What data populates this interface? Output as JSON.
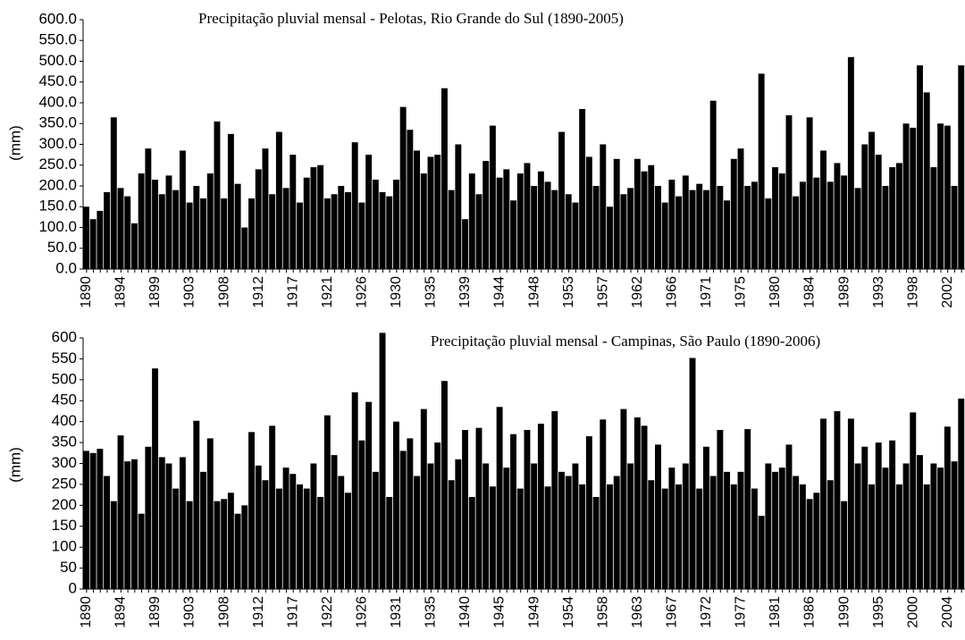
{
  "chart_data": [
    {
      "type": "bar",
      "title": "Precipitação pluvial mensal - Pelotas, Rio Grande do Sul (1890-2005)",
      "y_label": "(mm)",
      "color": "#000000",
      "categories": [
        "1890",
        null,
        null,
        null,
        null,
        "1894",
        null,
        null,
        null,
        null,
        "1899",
        null,
        null,
        null,
        null,
        "1903",
        null,
        null,
        null,
        null,
        "1908",
        null,
        null,
        null,
        null,
        "1912",
        null,
        null,
        null,
        null,
        "1917",
        null,
        null,
        null,
        null,
        "1921",
        null,
        null,
        null,
        null,
        "1926",
        null,
        null,
        null,
        null,
        "1930",
        null,
        null,
        null,
        null,
        "1935",
        null,
        null,
        null,
        null,
        "1939",
        null,
        null,
        null,
        null,
        "1944",
        null,
        null,
        null,
        null,
        "1948",
        null,
        null,
        null,
        null,
        "1953",
        null,
        null,
        null,
        null,
        "1957",
        null,
        null,
        null,
        null,
        "1962",
        null,
        null,
        null,
        null,
        "1966",
        null,
        null,
        null,
        null,
        "1971",
        null,
        null,
        null,
        null,
        "1975",
        null,
        null,
        null,
        null,
        "1980",
        null,
        null,
        null,
        null,
        "1984",
        null,
        null,
        null,
        null,
        "1989",
        null,
        null,
        null,
        null,
        "1993",
        null,
        null,
        null,
        null,
        "1998",
        null,
        null,
        null,
        null,
        "2002",
        null,
        null
      ],
      "values": [
        150,
        120,
        140,
        185,
        365,
        195,
        175,
        110,
        230,
        290,
        215,
        180,
        225,
        190,
        285,
        160,
        200,
        170,
        230,
        355,
        170,
        325,
        205,
        100,
        170,
        240,
        290,
        180,
        330,
        195,
        275,
        160,
        220,
        245,
        250,
        170,
        180,
        200,
        185,
        305,
        160,
        275,
        215,
        185,
        175,
        215,
        390,
        335,
        285,
        230,
        270,
        275,
        435,
        190,
        300,
        120,
        230,
        180,
        260,
        345,
        220,
        240,
        165,
        230,
        255,
        200,
        235,
        210,
        190,
        330,
        180,
        160,
        385,
        270,
        200,
        300,
        150,
        265,
        180,
        195,
        265,
        235,
        250,
        200,
        160,
        215,
        175,
        225,
        190,
        205,
        190,
        405,
        200,
        165,
        265,
        290,
        200,
        210,
        470,
        170,
        245,
        230,
        370,
        175,
        210,
        365,
        220,
        285,
        210,
        255,
        225,
        510,
        195,
        300,
        330,
        275,
        200,
        245,
        255,
        350,
        340,
        490,
        425,
        245,
        350,
        345,
        200,
        490
      ],
      "ylim": [
        0,
        600
      ],
      "yticks": [
        {
          "value": 0,
          "label": "0.0"
        },
        {
          "value": 50,
          "label": "50.0"
        },
        {
          "value": 100,
          "label": "100.0"
        },
        {
          "value": 150,
          "label": "150.0"
        },
        {
          "value": 200,
          "label": "200.0"
        },
        {
          "value": 250,
          "label": "250.0"
        },
        {
          "value": 300,
          "label": "300.0"
        },
        {
          "value": 350,
          "label": "350.0"
        },
        {
          "value": 400,
          "label": "400.0"
        },
        {
          "value": 450,
          "label": "450.0"
        },
        {
          "value": 500,
          "label": "500.0"
        },
        {
          "value": 550,
          "label": "550.0"
        },
        {
          "value": 600,
          "label": "600.0"
        }
      ]
    },
    {
      "type": "bar",
      "title": "Precipitação pluvial mensal - Campinas, São Paulo (1890-2006)",
      "y_label": "(mm)",
      "color": "#000000",
      "categories": [
        "1890",
        null,
        null,
        null,
        null,
        "1894",
        null,
        null,
        null,
        null,
        "1899",
        null,
        null,
        null,
        null,
        "1903",
        null,
        null,
        null,
        null,
        "1908",
        null,
        null,
        null,
        null,
        "1912",
        null,
        null,
        null,
        null,
        "1917",
        null,
        null,
        null,
        null,
        "1922",
        null,
        null,
        null,
        null,
        "1926",
        null,
        null,
        null,
        null,
        "1931",
        null,
        null,
        null,
        null,
        "1935",
        null,
        null,
        null,
        null,
        "1940",
        null,
        null,
        null,
        null,
        "1945",
        null,
        null,
        null,
        null,
        "1949",
        null,
        null,
        null,
        null,
        "1954",
        null,
        null,
        null,
        null,
        "1958",
        null,
        null,
        null,
        null,
        "1963",
        null,
        null,
        null,
        null,
        "1967",
        null,
        null,
        null,
        null,
        "1972",
        null,
        null,
        null,
        null,
        "1977",
        null,
        null,
        null,
        null,
        "1981",
        null,
        null,
        null,
        null,
        "1986",
        null,
        null,
        null,
        null,
        "1990",
        null,
        null,
        null,
        null,
        "1995",
        null,
        null,
        null,
        null,
        "2000",
        null,
        null,
        null,
        null,
        "2004",
        null,
        null
      ],
      "values": [
        330,
        325,
        335,
        270,
        210,
        367,
        305,
        310,
        180,
        340,
        527,
        315,
        300,
        240,
        315,
        210,
        402,
        280,
        360,
        210,
        215,
        230,
        180,
        200,
        375,
        295,
        260,
        390,
        240,
        290,
        275,
        250,
        240,
        300,
        220,
        415,
        320,
        270,
        230,
        470,
        355,
        447,
        280,
        612,
        220,
        400,
        330,
        360,
        270,
        430,
        300,
        350,
        497,
        260,
        310,
        380,
        220,
        385,
        300,
        245,
        435,
        290,
        370,
        240,
        380,
        300,
        395,
        245,
        425,
        280,
        270,
        300,
        250,
        365,
        220,
        405,
        250,
        270,
        430,
        300,
        410,
        390,
        260,
        345,
        240,
        290,
        250,
        300,
        552,
        240,
        340,
        270,
        380,
        280,
        250,
        280,
        382,
        240,
        175,
        300,
        280,
        290,
        345,
        270,
        250,
        215,
        230,
        407,
        260,
        425,
        210,
        407,
        300,
        340,
        250,
        350,
        290,
        355,
        250,
        300,
        422,
        320,
        250,
        300,
        290,
        388,
        305,
        455
      ],
      "ylim": [
        0,
        600
      ],
      "yticks": [
        0,
        50,
        100,
        150,
        200,
        250,
        300,
        350,
        400,
        450,
        500,
        550,
        600
      ]
    }
  ]
}
